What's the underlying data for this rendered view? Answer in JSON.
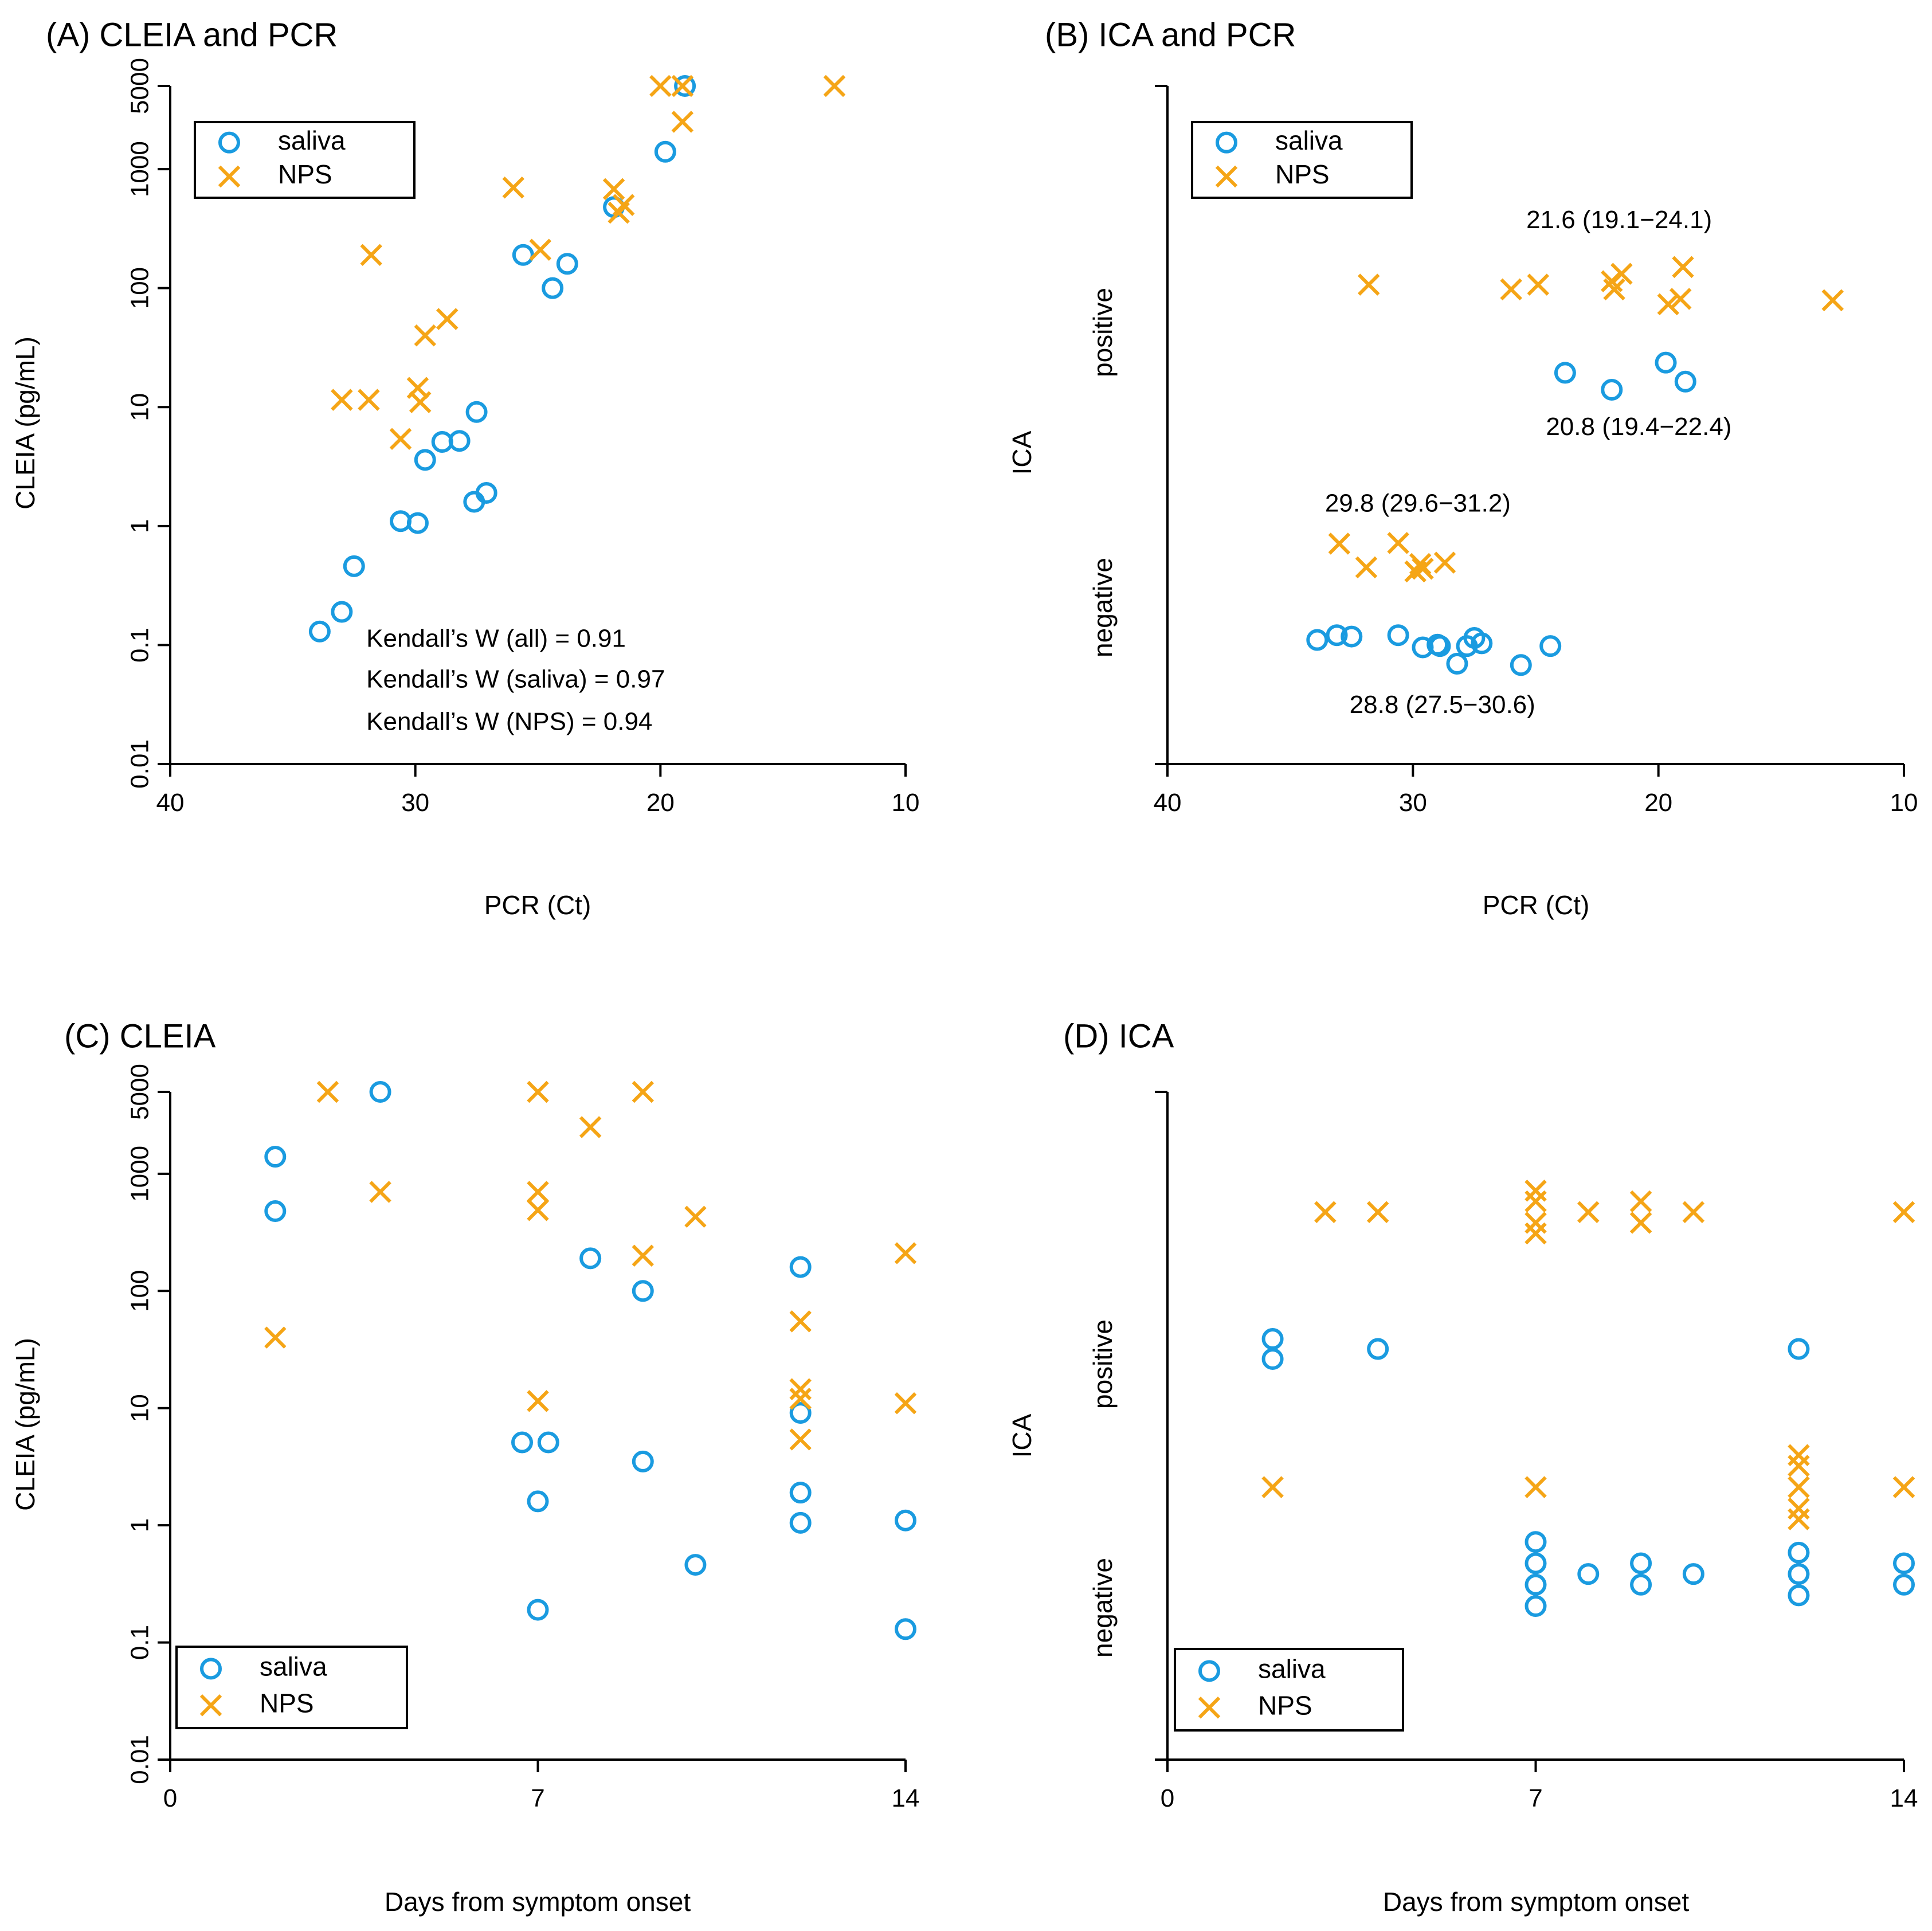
{
  "colors": {
    "saliva": "#1a9be0",
    "nps": "#f5a516"
  },
  "legend": {
    "saliva": "saliva",
    "nps": "NPS"
  },
  "chart_data": [
    {
      "id": "A",
      "type": "scatter",
      "title": "(A) CLEIA and PCR",
      "xlabel": "PCR (Ct)",
      "ylabel": "CLEIA (pg/mL)",
      "xlim": [
        40,
        10
      ],
      "yscale": "log",
      "ylim": [
        0.01,
        5000
      ],
      "xticks": [
        40,
        30,
        20,
        10
      ],
      "xtick_labels": [
        "40",
        "30",
        "20",
        "10"
      ],
      "yticks": [
        0.01,
        0.1,
        1,
        10,
        100,
        1000,
        5000
      ],
      "ytick_labels": [
        "0.01",
        "0.1",
        "1",
        "10",
        "100",
        "1000",
        "5000"
      ],
      "legend_position": "top-left",
      "annotations": [
        {
          "text": "Kendall’s W (all) = 0.91",
          "x": 32,
          "y": 0.11
        },
        {
          "text": "Kendall’s W (saliva) = 0.97",
          "x": 32,
          "y": 0.05
        },
        {
          "text": "Kendall’s W (NPS) = 0.94",
          "x": 32,
          "y": 0.022
        }
      ],
      "series": [
        {
          "name": "saliva",
          "marker": "circle",
          "points": [
            [
              33.9,
              0.13
            ],
            [
              33,
              0.19
            ],
            [
              32.5,
              0.46
            ],
            [
              30.6,
              1.1
            ],
            [
              29.9,
              1.06
            ],
            [
              29.6,
              3.6
            ],
            [
              28.9,
              5.1
            ],
            [
              28.2,
              5.2
            ],
            [
              27.6,
              1.6
            ],
            [
              27.5,
              9.1
            ],
            [
              27.1,
              1.9
            ],
            [
              25.6,
              190
            ],
            [
              24.4,
              100
            ],
            [
              23.8,
              160
            ],
            [
              21.9,
              480
            ],
            [
              19.8,
              1400
            ],
            [
              19.0,
              5000
            ]
          ]
        },
        {
          "name": "NPS",
          "marker": "cross",
          "points": [
            [
              33,
              11.5
            ],
            [
              31.9,
              11.5
            ],
            [
              31.8,
              190
            ],
            [
              30.6,
              5.4
            ],
            [
              29.9,
              14.5
            ],
            [
              29.8,
              11
            ],
            [
              29.6,
              40
            ],
            [
              28.7,
              55
            ],
            [
              26,
              700
            ],
            [
              24.9,
              210
            ],
            [
              21.9,
              680
            ],
            [
              21.7,
              430
            ],
            [
              21.5,
              500
            ],
            [
              20,
              5000
            ],
            [
              19.1,
              5000
            ],
            [
              19.1,
              2500
            ],
            [
              12.9,
              5000
            ]
          ]
        }
      ]
    },
    {
      "id": "B",
      "type": "scatter",
      "title": "(B) ICA and PCR",
      "xlabel": "PCR (Ct)",
      "ylabel": "ICA",
      "xlim": [
        40,
        10
      ],
      "ylim": [
        0,
        1
      ],
      "xticks": [
        40,
        30,
        20,
        10
      ],
      "xtick_labels": [
        "40",
        "30",
        "20",
        "10"
      ],
      "ycategories": [
        "negative",
        "positive"
      ],
      "legend_position": "top-left",
      "annotations": [
        {
          "text": "21.6 (19.1−24.1)",
          "x": 21.6,
          "y": 0.8
        },
        {
          "text": "20.8 (19.4−22.4)",
          "x": 20.8,
          "y": 0.495
        },
        {
          "text": "29.8 (29.6−31.2)",
          "x": 29.8,
          "y": 0.382
        },
        {
          "text": "28.8 (27.5−30.6)",
          "x": 28.8,
          "y": 0.085
        }
      ],
      "series": [
        {
          "name": "saliva",
          "marker": "circle",
          "points": [
            [
              33.9,
              0.183
            ],
            [
              33.1,
              0.19
            ],
            [
              32.5,
              0.188
            ],
            [
              30.6,
              0.19
            ],
            [
              29.6,
              0.172
            ],
            [
              29.0,
              0.176
            ],
            [
              28.9,
              0.174
            ],
            [
              28.2,
              0.148
            ],
            [
              27.8,
              0.174
            ],
            [
              27.5,
              0.186
            ],
            [
              27.2,
              0.178
            ],
            [
              25.6,
              0.146
            ],
            [
              24.4,
              0.174
            ],
            [
              23.8,
              0.577
            ],
            [
              21.9,
              0.552
            ],
            [
              19.7,
              0.592
            ],
            [
              18.9,
              0.564
            ]
          ]
        },
        {
          "name": "NPS",
          "marker": "cross",
          "points": [
            [
              33,
              0.325
            ],
            [
              31.9,
              0.29
            ],
            [
              31.8,
              0.707
            ],
            [
              30.6,
              0.326
            ],
            [
              29.9,
              0.284
            ],
            [
              29.7,
              0.295
            ],
            [
              29.6,
              0.288
            ],
            [
              28.7,
              0.297
            ],
            [
              26.0,
              0.7
            ],
            [
              24.9,
              0.707
            ],
            [
              21.9,
              0.712
            ],
            [
              21.8,
              0.7
            ],
            [
              21.5,
              0.723
            ],
            [
              19.6,
              0.678
            ],
            [
              19.0,
              0.733
            ],
            [
              19.1,
              0.686
            ],
            [
              12.9,
              0.684
            ]
          ]
        }
      ]
    },
    {
      "id": "C",
      "type": "scatter",
      "title": "(C) CLEIA",
      "xlabel": "Days from symptom onset",
      "ylabel": "CLEIA (pg/mL)",
      "xlim": [
        0,
        14
      ],
      "yscale": "log",
      "ylim": [
        0.01,
        5000
      ],
      "xticks": [
        0,
        7,
        14
      ],
      "xtick_labels": [
        "0",
        "7",
        "14"
      ],
      "yticks": [
        0.01,
        0.1,
        1,
        10,
        100,
        1000,
        5000
      ],
      "ytick_labels": [
        "0.01",
        "0.1",
        "1",
        "10",
        "100",
        "1000",
        "5000"
      ],
      "legend_position": "bottom-left",
      "series": [
        {
          "name": "saliva",
          "marker": "circle",
          "points": [
            [
              2,
              1400
            ],
            [
              2,
              480
            ],
            [
              4,
              5000
            ],
            [
              6.7,
              5.1
            ],
            [
              7,
              1.6
            ],
            [
              7,
              0.19
            ],
            [
              7.2,
              5.1
            ],
            [
              8,
              190
            ],
            [
              9,
              100
            ],
            [
              9,
              3.5
            ],
            [
              10,
              0.46
            ],
            [
              12,
              160
            ],
            [
              12,
              9.1
            ],
            [
              12,
              1.9
            ],
            [
              12,
              1.05
            ],
            [
              14,
              1.1
            ],
            [
              14,
              0.13
            ]
          ]
        },
        {
          "name": "NPS",
          "marker": "cross",
          "points": [
            [
              2,
              40
            ],
            [
              3,
              5000
            ],
            [
              4,
              700
            ],
            [
              7,
              5000
            ],
            [
              7,
              700
            ],
            [
              7,
              490
            ],
            [
              7,
              11.5
            ],
            [
              8,
              2500
            ],
            [
              9,
              5000
            ],
            [
              9,
              200
            ],
            [
              10,
              430
            ],
            [
              12,
              55
            ],
            [
              12,
              14.5
            ],
            [
              12,
              12
            ],
            [
              12,
              5.4
            ],
            [
              14,
              210
            ],
            [
              14,
              11
            ]
          ]
        }
      ]
    },
    {
      "id": "D",
      "type": "scatter",
      "title": "(D) ICA",
      "xlabel": "Days from symptom onset",
      "ylabel": "ICA",
      "xlim": [
        0,
        14
      ],
      "ylim": [
        0,
        1
      ],
      "xticks": [
        0,
        7,
        14
      ],
      "xtick_labels": [
        "0",
        "7",
        "14"
      ],
      "ycategories": [
        "negative",
        "positive"
      ],
      "legend_position": "bottom-left",
      "series": [
        {
          "name": "saliva",
          "marker": "circle",
          "points": [
            [
              2,
              0.63
            ],
            [
              2,
              0.6
            ],
            [
              4,
              0.615
            ],
            [
              7,
              0.326
            ],
            [
              7,
              0.294
            ],
            [
              7,
              0.262
            ],
            [
              7,
              0.23
            ],
            [
              8,
              0.278
            ],
            [
              9,
              0.294
            ],
            [
              9,
              0.262
            ],
            [
              10,
              0.278
            ],
            [
              12,
              0.31
            ],
            [
              12,
              0.278
            ],
            [
              12,
              0.246
            ],
            [
              12,
              0.615
            ],
            [
              14,
              0.294
            ],
            [
              14,
              0.262
            ]
          ]
        },
        {
          "name": "NPS",
          "marker": "cross",
          "points": [
            [
              2,
              0.408
            ],
            [
              3,
              0.82
            ],
            [
              4,
              0.82
            ],
            [
              7,
              0.852
            ],
            [
              7,
              0.836
            ],
            [
              7,
              0.804
            ],
            [
              7,
              0.788
            ],
            [
              7,
              0.408
            ],
            [
              8,
              0.82
            ],
            [
              9,
              0.836
            ],
            [
              9,
              0.804
            ],
            [
              10,
              0.82
            ],
            [
              12,
              0.456
            ],
            [
              12,
              0.44
            ],
            [
              12,
              0.408
            ],
            [
              12,
              0.376
            ],
            [
              12,
              0.36
            ],
            [
              14,
              0.82
            ],
            [
              14,
              0.408
            ]
          ]
        }
      ]
    }
  ]
}
